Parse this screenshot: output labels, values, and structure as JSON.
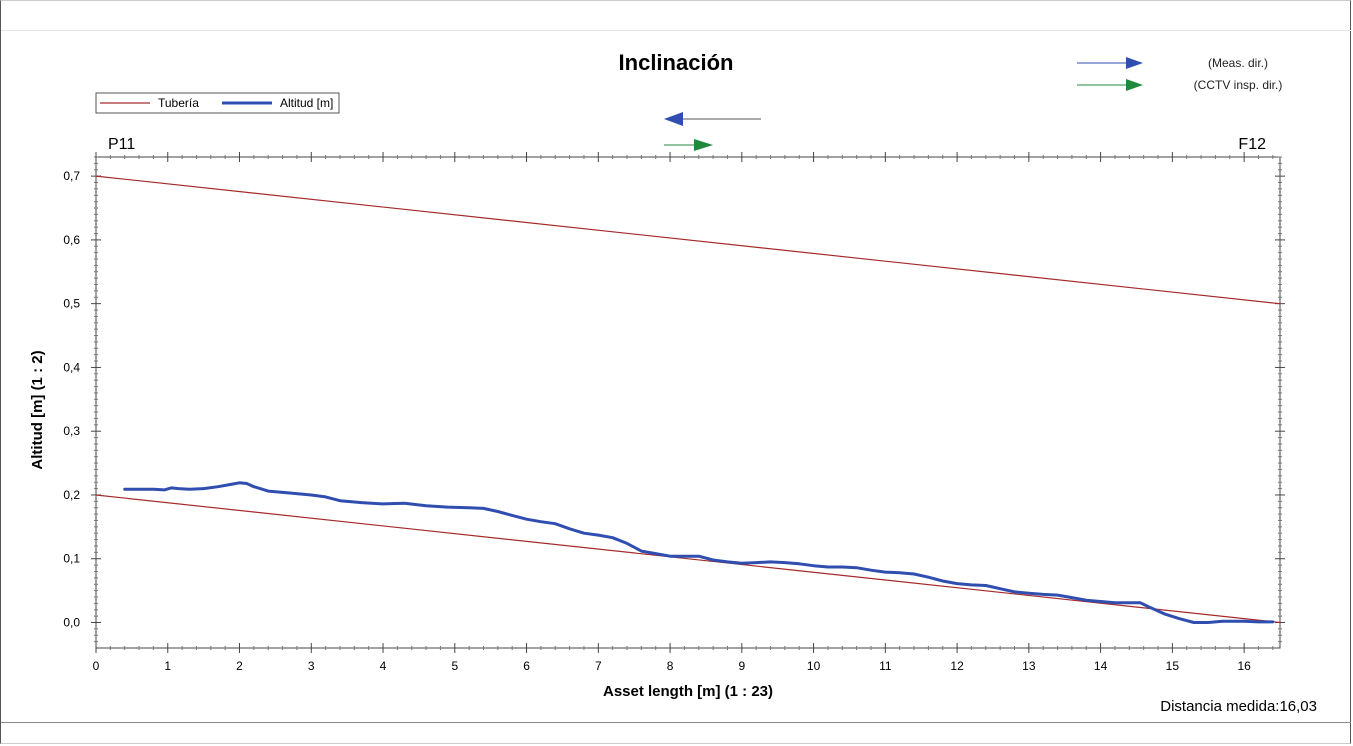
{
  "chart_data": {
    "type": "line",
    "title": "Inclinación",
    "xlabel": "Asset length [m] (1 : 23)",
    "ylabel": "Altitud [m] (1 : 2)",
    "xlim": [
      0,
      16.5
    ],
    "ylim": [
      -0.04,
      0.73
    ],
    "x_ticks": [
      0,
      1,
      2,
      3,
      4,
      5,
      6,
      7,
      8,
      9,
      10,
      11,
      12,
      13,
      14,
      15,
      16
    ],
    "y_ticks": [
      0.0,
      0.1,
      0.2,
      0.3,
      0.4,
      0.5,
      0.6,
      0.7
    ],
    "y_tick_labels": [
      "0,0",
      "0,1",
      "0,2",
      "0,3",
      "0,4",
      "0,5",
      "0,6",
      "0,7"
    ],
    "grid": false,
    "legend": {
      "placement": "top-left",
      "entries": [
        "Tubería",
        "Altitud [m]"
      ]
    },
    "series": [
      {
        "name": "Tubería",
        "color": "#a52a2a",
        "x": [
          0,
          16.5
        ],
        "y": [
          0.7,
          0.5
        ]
      },
      {
        "name": "Tubería",
        "color": "#a52a2a",
        "x": [
          0,
          16.5
        ],
        "y": [
          0.2,
          0.0
        ]
      },
      {
        "name": "Altitud [m]",
        "color": "#2f4eb0",
        "x": [
          0.4,
          0.6,
          0.8,
          0.95,
          1.05,
          1.15,
          1.3,
          1.5,
          1.7,
          1.9,
          2.0,
          2.1,
          2.2,
          2.4,
          2.7,
          3.0,
          3.2,
          3.4,
          3.7,
          4.0,
          4.3,
          4.6,
          4.9,
          5.2,
          5.4,
          5.6,
          5.8,
          6.0,
          6.2,
          6.4,
          6.6,
          6.8,
          7.0,
          7.2,
          7.4,
          7.6,
          7.8,
          8.0,
          8.2,
          8.4,
          8.6,
          8.8,
          9.0,
          9.2,
          9.4,
          9.6,
          9.8,
          10.0,
          10.2,
          10.4,
          10.6,
          10.8,
          11.0,
          11.2,
          11.4,
          11.6,
          11.8,
          12.0,
          12.2,
          12.4,
          12.6,
          12.8,
          13.0,
          13.2,
          13.4,
          13.6,
          13.8,
          14.0,
          14.2,
          14.4,
          14.55,
          14.7,
          14.9,
          15.1,
          15.3,
          15.5,
          15.7,
          16.0,
          16.2,
          16.4
        ],
        "y": [
          0.209,
          0.209,
          0.209,
          0.208,
          0.211,
          0.21,
          0.209,
          0.21,
          0.213,
          0.217,
          0.219,
          0.218,
          0.213,
          0.206,
          0.203,
          0.2,
          0.197,
          0.191,
          0.188,
          0.186,
          0.187,
          0.183,
          0.181,
          0.18,
          0.179,
          0.174,
          0.168,
          0.162,
          0.158,
          0.155,
          0.147,
          0.14,
          0.137,
          0.133,
          0.124,
          0.112,
          0.108,
          0.104,
          0.104,
          0.104,
          0.098,
          0.095,
          0.093,
          0.094,
          0.095,
          0.094,
          0.092,
          0.089,
          0.087,
          0.087,
          0.086,
          0.082,
          0.079,
          0.078,
          0.076,
          0.071,
          0.065,
          0.061,
          0.059,
          0.058,
          0.053,
          0.048,
          0.046,
          0.044,
          0.043,
          0.039,
          0.035,
          0.033,
          0.031,
          0.031,
          0.031,
          0.023,
          0.013,
          0.006,
          0.0,
          0.0,
          0.002,
          0.002,
          0.001,
          0.001
        ]
      }
    ]
  },
  "labels": {
    "start_node": "P11",
    "end_node": "F12",
    "meas_dir": "(Meas. dir.)",
    "cctv_dir": "(CCTV insp. dir.)",
    "distance": "Distancia medida:16,03"
  },
  "colors": {
    "pipe": "#a52a2a",
    "altitude": "#2f4eb0",
    "meas_arrow": "#2f4eb0",
    "cctv_arrow": "#1f8a3c"
  }
}
